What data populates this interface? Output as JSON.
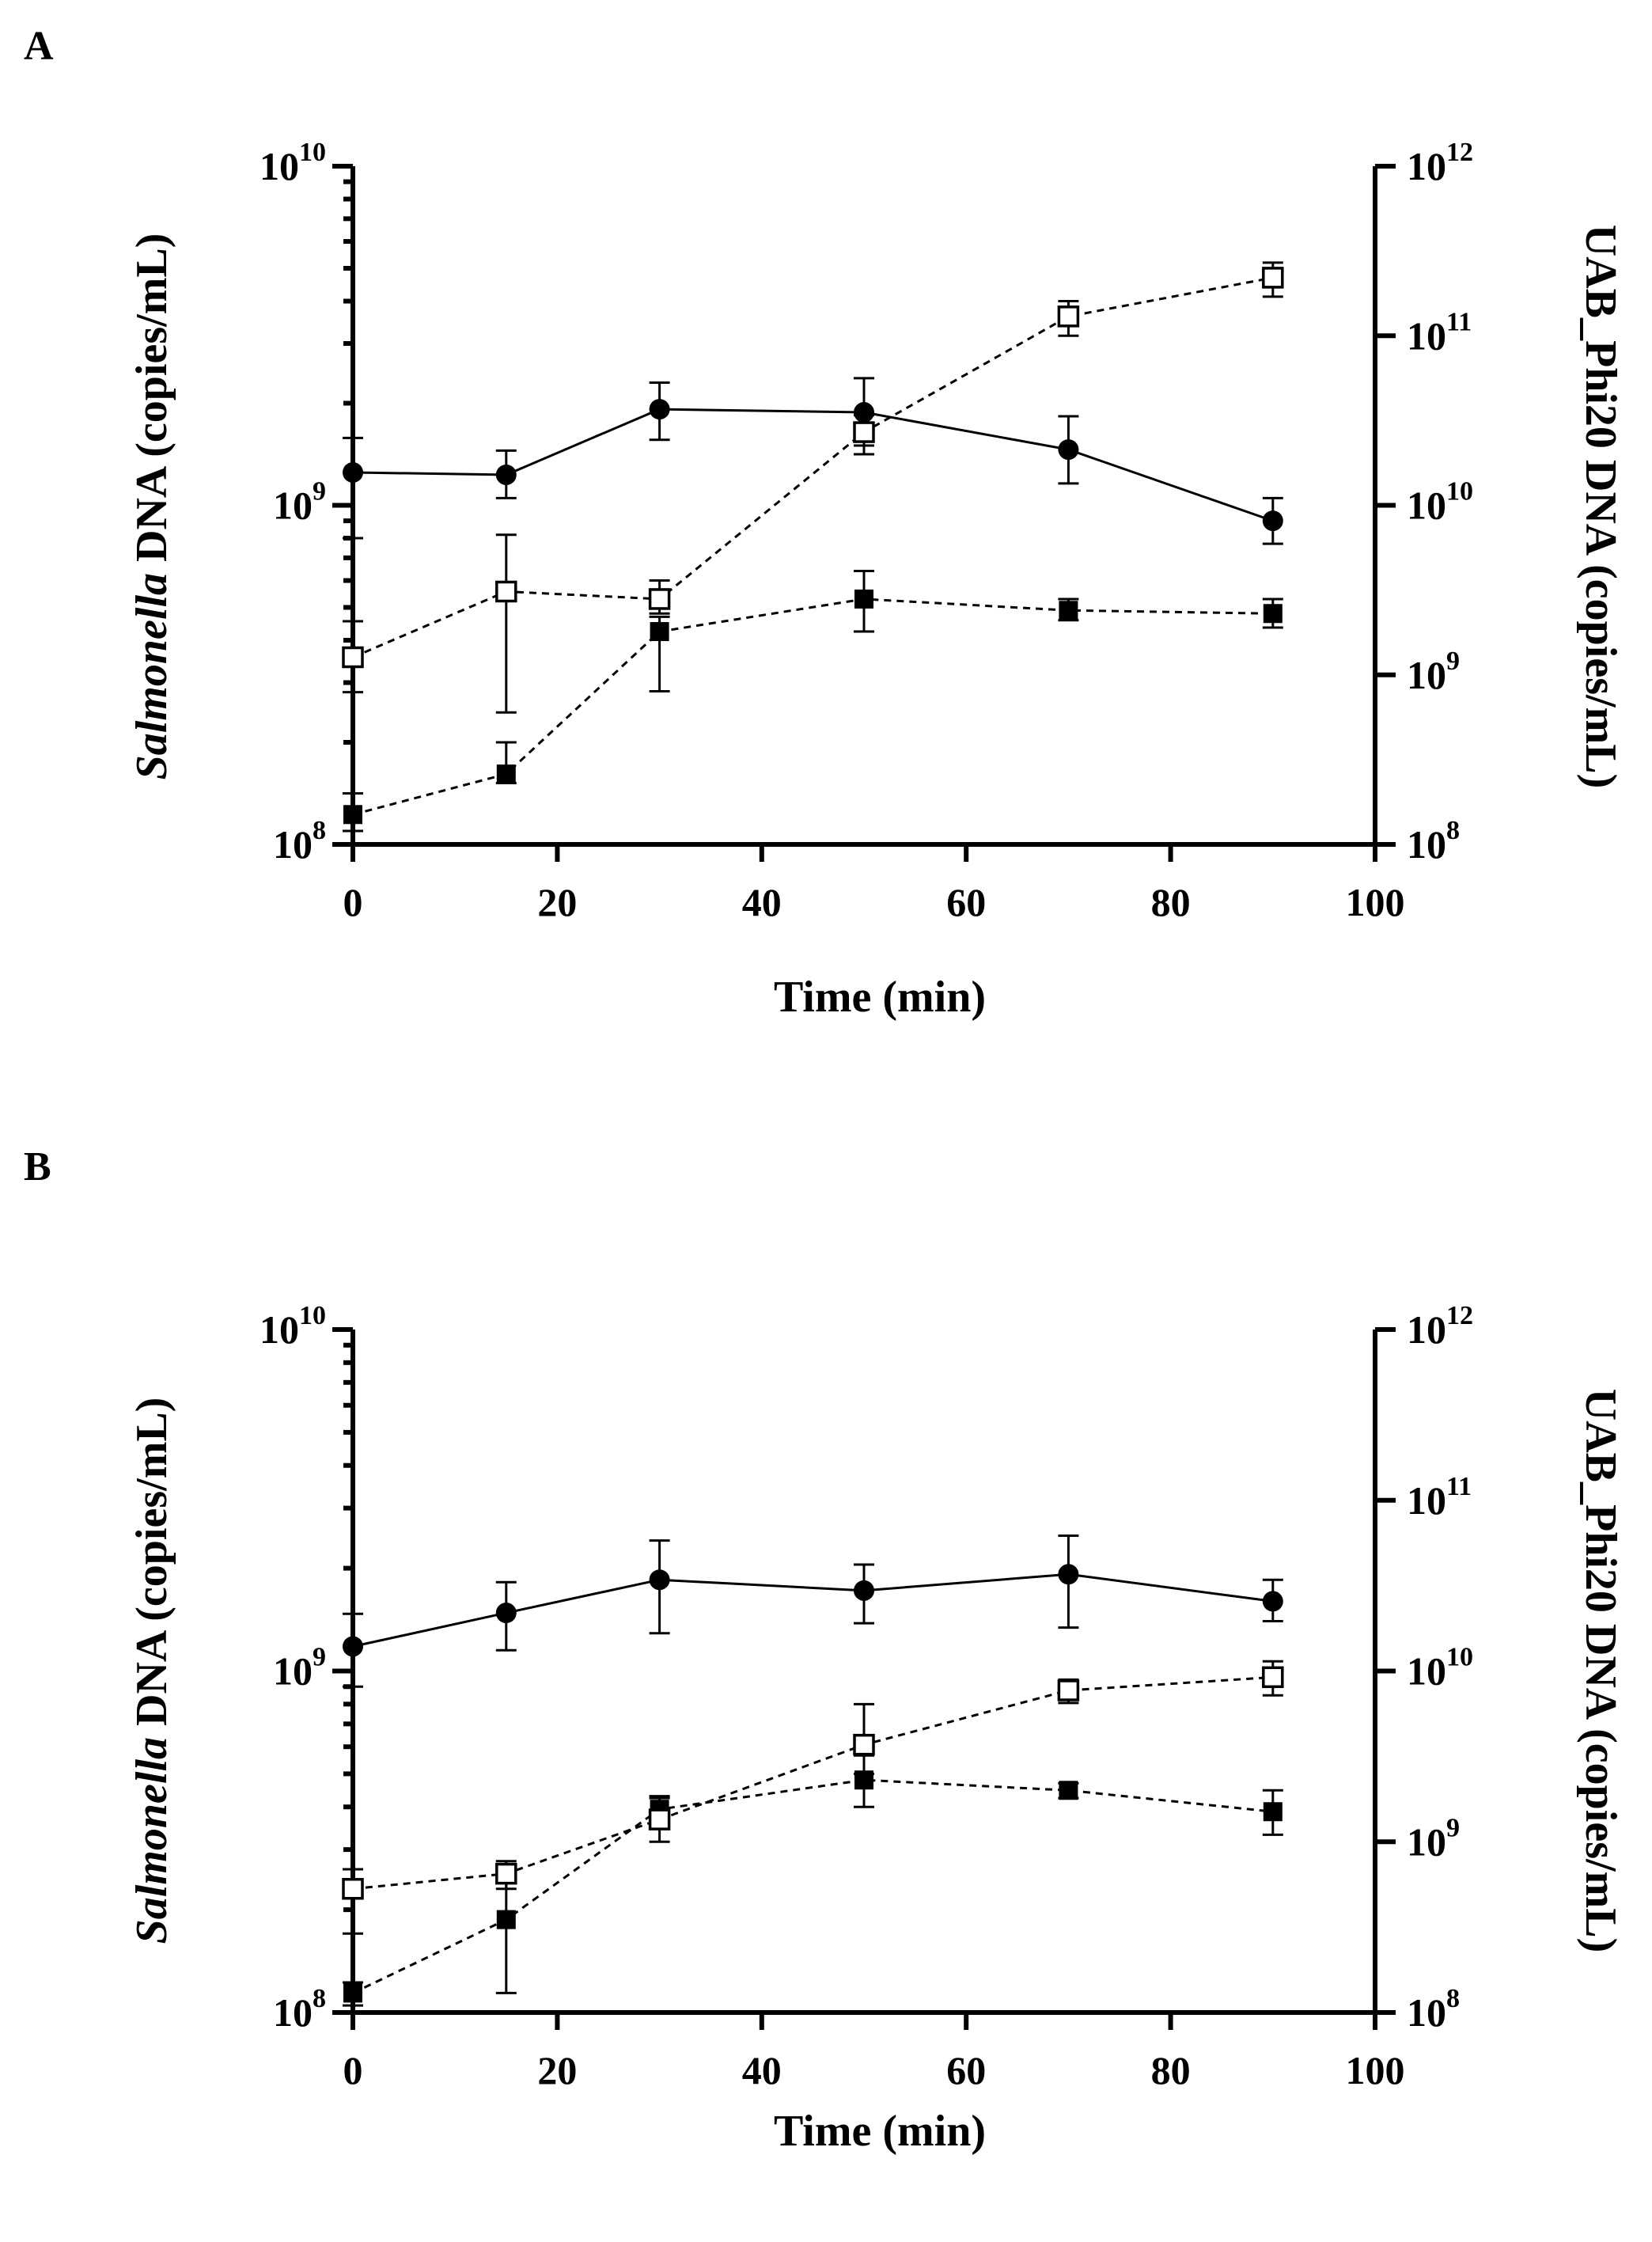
{
  "chart_data": [
    {
      "type": "line",
      "panel_label": "A",
      "xlabel": "Time (min)",
      "ylabel_left_italic": "Salmonella",
      "ylabel_left_rest": " DNA (copies/mL)",
      "ylabel_right": "UAB_Phi20 DNA (copies/mL)",
      "xlim": [
        0,
        100
      ],
      "xticks": [
        "0",
        "20",
        "40",
        "60",
        "80",
        "100"
      ],
      "ylim_left": [
        100000000,
        10000000000
      ],
      "ylim_right": [
        100000000,
        1000000000000
      ],
      "yscale": "log",
      "yticks_left": [
        {
          "base": "10",
          "exp": "8"
        },
        {
          "base": "10",
          "exp": "9"
        },
        {
          "base": "10",
          "exp": "10"
        }
      ],
      "yticks_right": [
        {
          "base": "10",
          "exp": "8"
        },
        {
          "base": "10",
          "exp": "9"
        },
        {
          "base": "10",
          "exp": "10"
        },
        {
          "base": "10",
          "exp": "11"
        },
        {
          "base": "10",
          "exp": "12"
        }
      ],
      "x": [
        0,
        15,
        30,
        50,
        70,
        90
      ],
      "series": [
        {
          "name": "Salmonella DNA",
          "axis": "left",
          "marker": "filled-circle",
          "line": "solid",
          "values": [
            1250000000,
            1230000000,
            1920000000,
            1880000000,
            1460000000,
            900000000
          ],
          "err_low": [
            450000000,
            180000000,
            360000000,
            380000000,
            300000000,
            130000000
          ],
          "err_high": [
            330000000,
            220000000,
            380000000,
            490000000,
            370000000,
            150000000
          ]
        },
        {
          "name": "UAB_Phi20 DNA (filled squares)",
          "axis": "right",
          "marker": "filled-square",
          "line": "dashed",
          "values": [
            150000000,
            260000000,
            1800000000,
            2800000000,
            2400000000,
            2300000000
          ],
          "err_low": [
            30000000,
            30000000,
            1000000000,
            1000000000,
            300000000,
            400000000
          ],
          "err_high": [
            50000000,
            140000000,
            400000000,
            1300000000,
            400000000,
            500000000
          ]
        },
        {
          "name": "UAB_Phi20 DNA (open squares)",
          "axis": "right",
          "marker": "open-square",
          "line": "dashed",
          "values": [
            1270000000,
            3100000000,
            2800000000,
            27000000000,
            130000000000,
            220000000000
          ],
          "err_low": [
            480000000,
            2500000000,
            500000000,
            7000000000,
            30000000000,
            50000000000
          ],
          "err_high": [
            800000000,
            3600000000,
            800000000,
            7000000000,
            30000000000,
            50000000000
          ]
        }
      ]
    },
    {
      "type": "line",
      "panel_label": "B",
      "xlabel": "Time (min)",
      "ylabel_left_italic": "Salmonella",
      "ylabel_left_rest": " DNA (copies/mL)",
      "ylabel_right": "UAB_Phi20 DNA (copies/mL)",
      "xlim": [
        0,
        100
      ],
      "xticks": [
        "0",
        "20",
        "40",
        "60",
        "80",
        "100"
      ],
      "ylim_left": [
        100000000,
        10000000000
      ],
      "ylim_right": [
        100000000,
        1000000000000
      ],
      "yscale": "log",
      "yticks_left": [
        {
          "base": "10",
          "exp": "8"
        },
        {
          "base": "10",
          "exp": "9"
        },
        {
          "base": "10",
          "exp": "10"
        }
      ],
      "yticks_right": [
        {
          "base": "10",
          "exp": "8"
        },
        {
          "base": "10",
          "exp": "9"
        },
        {
          "base": "10",
          "exp": "10"
        },
        {
          "base": "10",
          "exp": "11"
        },
        {
          "base": "10",
          "exp": "12"
        }
      ],
      "x": [
        0,
        15,
        30,
        50,
        70,
        90
      ],
      "series": [
        {
          "name": "Salmonella DNA",
          "axis": "left",
          "marker": "filled-circle",
          "line": "solid",
          "values": [
            1180000000,
            1480000000,
            1850000000,
            1720000000,
            1920000000,
            1600000000
          ],
          "err_low": [
            280000000,
            330000000,
            560000000,
            340000000,
            580000000,
            200000000
          ],
          "err_high": [
            290000000,
            340000000,
            560000000,
            330000000,
            570000000,
            250000000
          ]
        },
        {
          "name": "UAB_Phi20 DNA (filled squares)",
          "axis": "right",
          "marker": "filled-square",
          "line": "dashed",
          "values": [
            130000000,
            350000000,
            1550000000,
            2300000000,
            2000000000,
            1500000000
          ],
          "err_low": [
            20000000,
            220000000,
            300000000,
            700000000,
            200000000,
            400000000
          ],
          "err_high": [
            20000000,
            300000000,
            300000000,
            900000000,
            200000000,
            500000000
          ]
        },
        {
          "name": "UAB_Phi20 DNA (open squares)",
          "axis": "right",
          "marker": "open-square",
          "line": "dashed",
          "values": [
            530000000,
            650000000,
            1350000000,
            3700000000,
            7700000000,
            9200000000
          ],
          "err_low": [
            240000000,
            120000000,
            350000000,
            1200000000,
            1200000000,
            2000000000
          ],
          "err_high": [
            160000000,
            120000000,
            450000000,
            2700000000,
            1200000000,
            2200000000
          ]
        }
      ]
    }
  ]
}
